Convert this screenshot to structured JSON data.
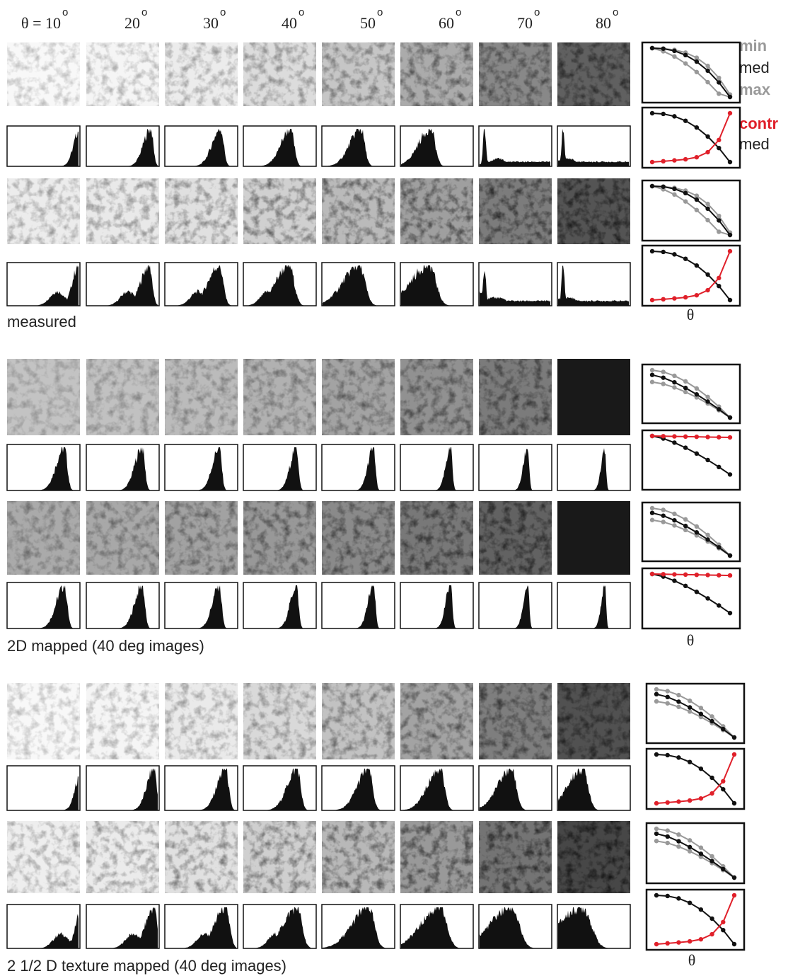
{
  "header": {
    "angles": [
      "θ = 10",
      "20",
      "30",
      "40",
      "50",
      "60",
      "70",
      "80"
    ],
    "degree": "o"
  },
  "legend": {
    "min": "min",
    "med": "med",
    "max": "max",
    "contr": "contr",
    "med_2": "med"
  },
  "sections": [
    {
      "caption": "measured",
      "axis_label": "θ"
    },
    {
      "caption": "2D mapped (40 deg images)",
      "axis_label": "θ"
    },
    {
      "caption": "2 1/2 D texture mapped (40 deg images)",
      "axis_label": "θ"
    }
  ]
}
